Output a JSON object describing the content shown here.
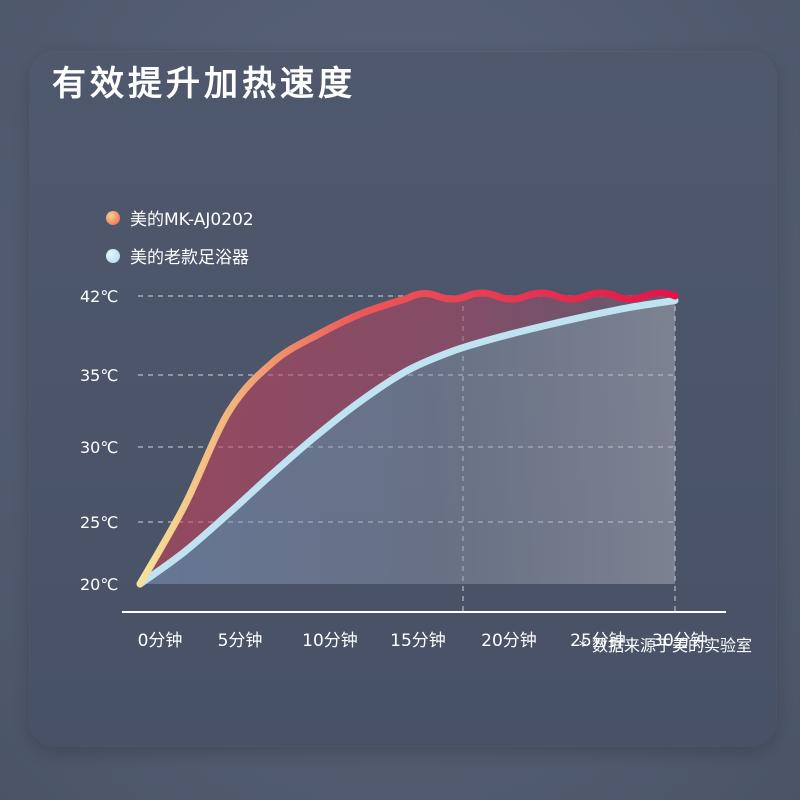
{
  "title": "有效提升加热速度",
  "footnote": "* 数据来源于美的实验室",
  "colors": {
    "new_model_start": "#f3dc8c",
    "new_model_end": "#e3174a",
    "old_model": "#bfe3f0",
    "grid": "#c9ced8"
  },
  "chart_data": {
    "type": "line",
    "title": "有效提升加热速度",
    "xlabel": "",
    "ylabel": "",
    "x_ticks": [
      "0分钟",
      "5分钟",
      "10分钟",
      "15分钟",
      "20分钟",
      "25分钟",
      "30分钟"
    ],
    "y_ticks": [
      "20℃",
      "25℃",
      "30℃",
      "35℃",
      "42℃"
    ],
    "xlim": [
      0,
      30
    ],
    "series": [
      {
        "name": "美的MK-AJ0202",
        "x": [
          0,
          2.5,
          5,
          7.5,
          10,
          12.5,
          15,
          17.5,
          20,
          22.5,
          25,
          27.5,
          30
        ],
        "y": [
          20,
          26.1,
          32.5,
          36.2,
          38.6,
          40.5,
          41.8,
          42,
          42,
          42,
          42,
          42,
          42
        ]
      },
      {
        "name": "美的老款足浴器",
        "x": [
          0,
          2.5,
          5,
          7.5,
          10,
          12.5,
          15,
          17.5,
          20,
          22.5,
          25,
          27.5,
          30
        ],
        "y": [
          20,
          22.6,
          25.6,
          28.3,
          30.9,
          33.3,
          35.4,
          37.1,
          38.3,
          39.3,
          40.2,
          41,
          41.6
        ]
      }
    ],
    "grid": "horizontal dashed",
    "legend": "top-left"
  }
}
